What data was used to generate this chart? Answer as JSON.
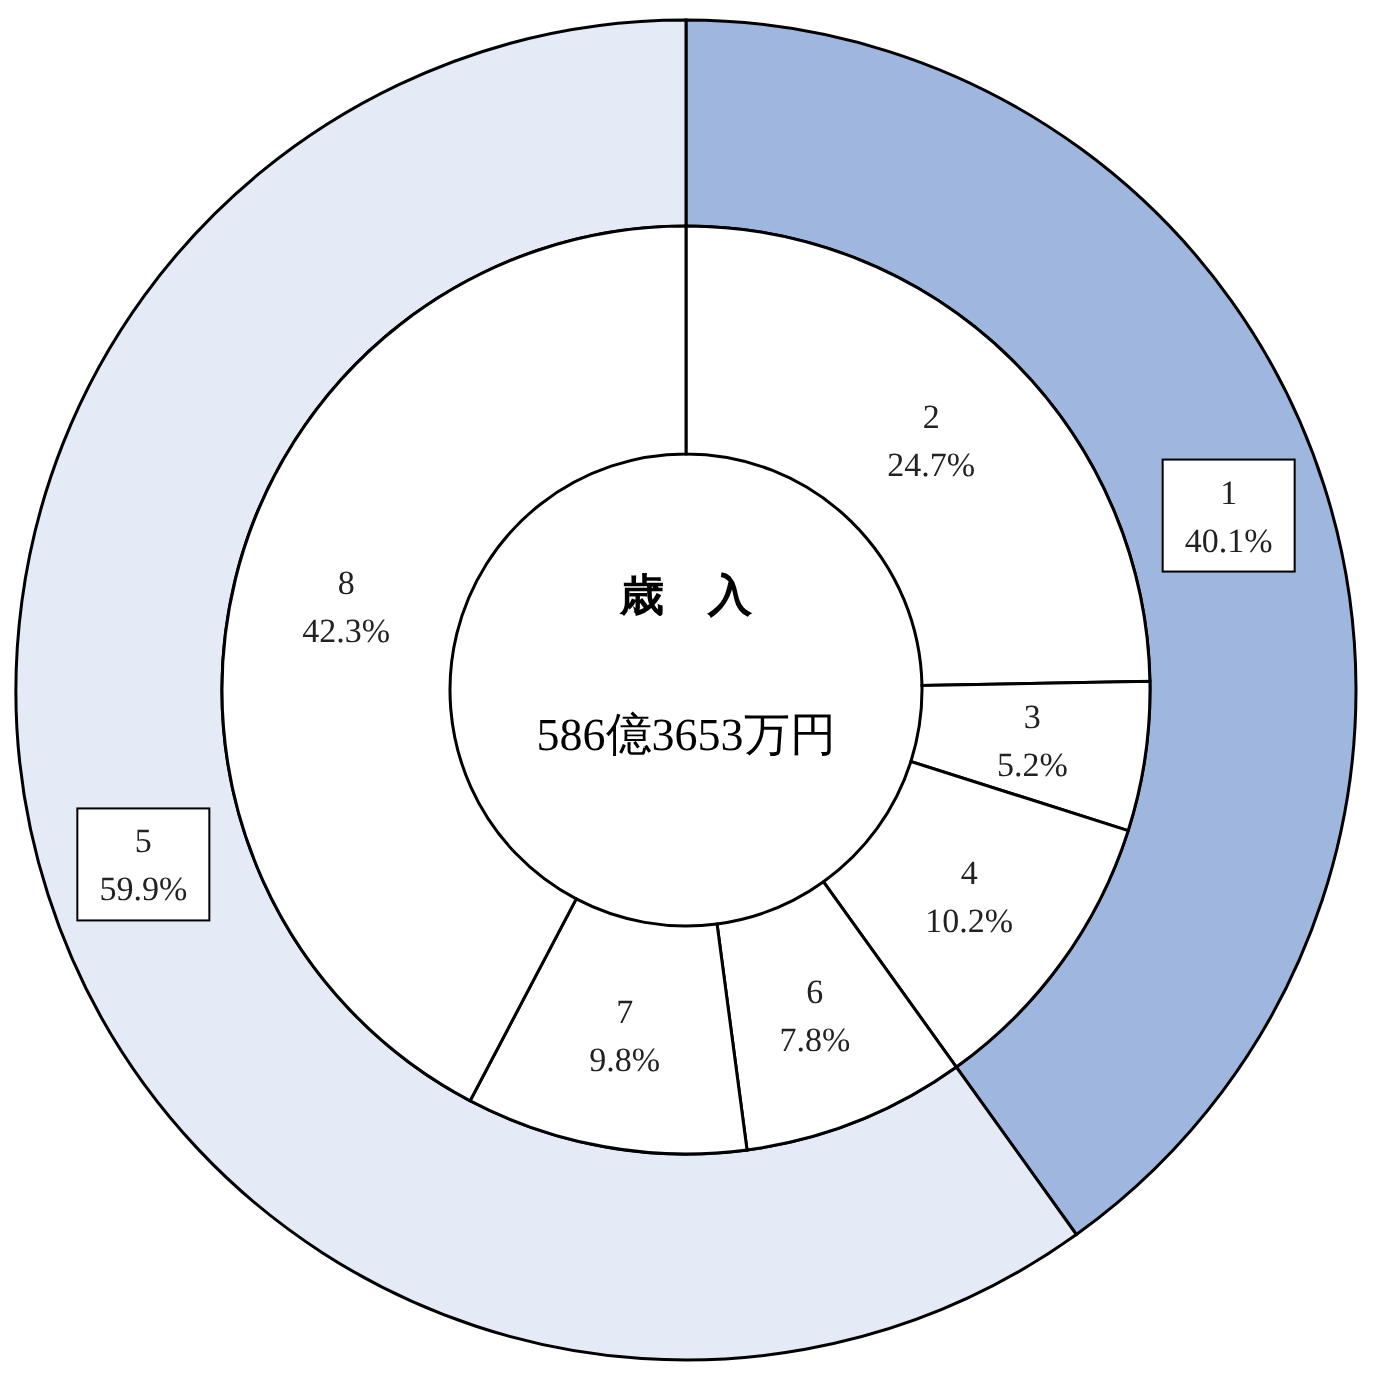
{
  "chart_data": [
    {
      "type": "donut",
      "categories": [
        "1",
        "5"
      ],
      "values": [
        40.1,
        59.9
      ],
      "colors": [
        "#9fb6df",
        "#e4ebf7"
      ],
      "value_labels": [
        "40.1%",
        "59.9%"
      ]
    },
    {
      "type": "donut",
      "title": "歳　入",
      "subtitle": "586億3653万円",
      "categories": [
        "2",
        "3",
        "4",
        "6",
        "7",
        "8"
      ],
      "values": [
        24.7,
        5.2,
        10.2,
        7.8,
        9.8,
        42.3
      ],
      "colors": [
        "#ffffff",
        "#ffffff",
        "#ffffff",
        "#ffffff",
        "#ffffff",
        "#ffffff"
      ],
      "value_labels": [
        "24.7%",
        "5.2%",
        "10.2%",
        "7.8%",
        "9.8%",
        "42.3%"
      ]
    }
  ]
}
